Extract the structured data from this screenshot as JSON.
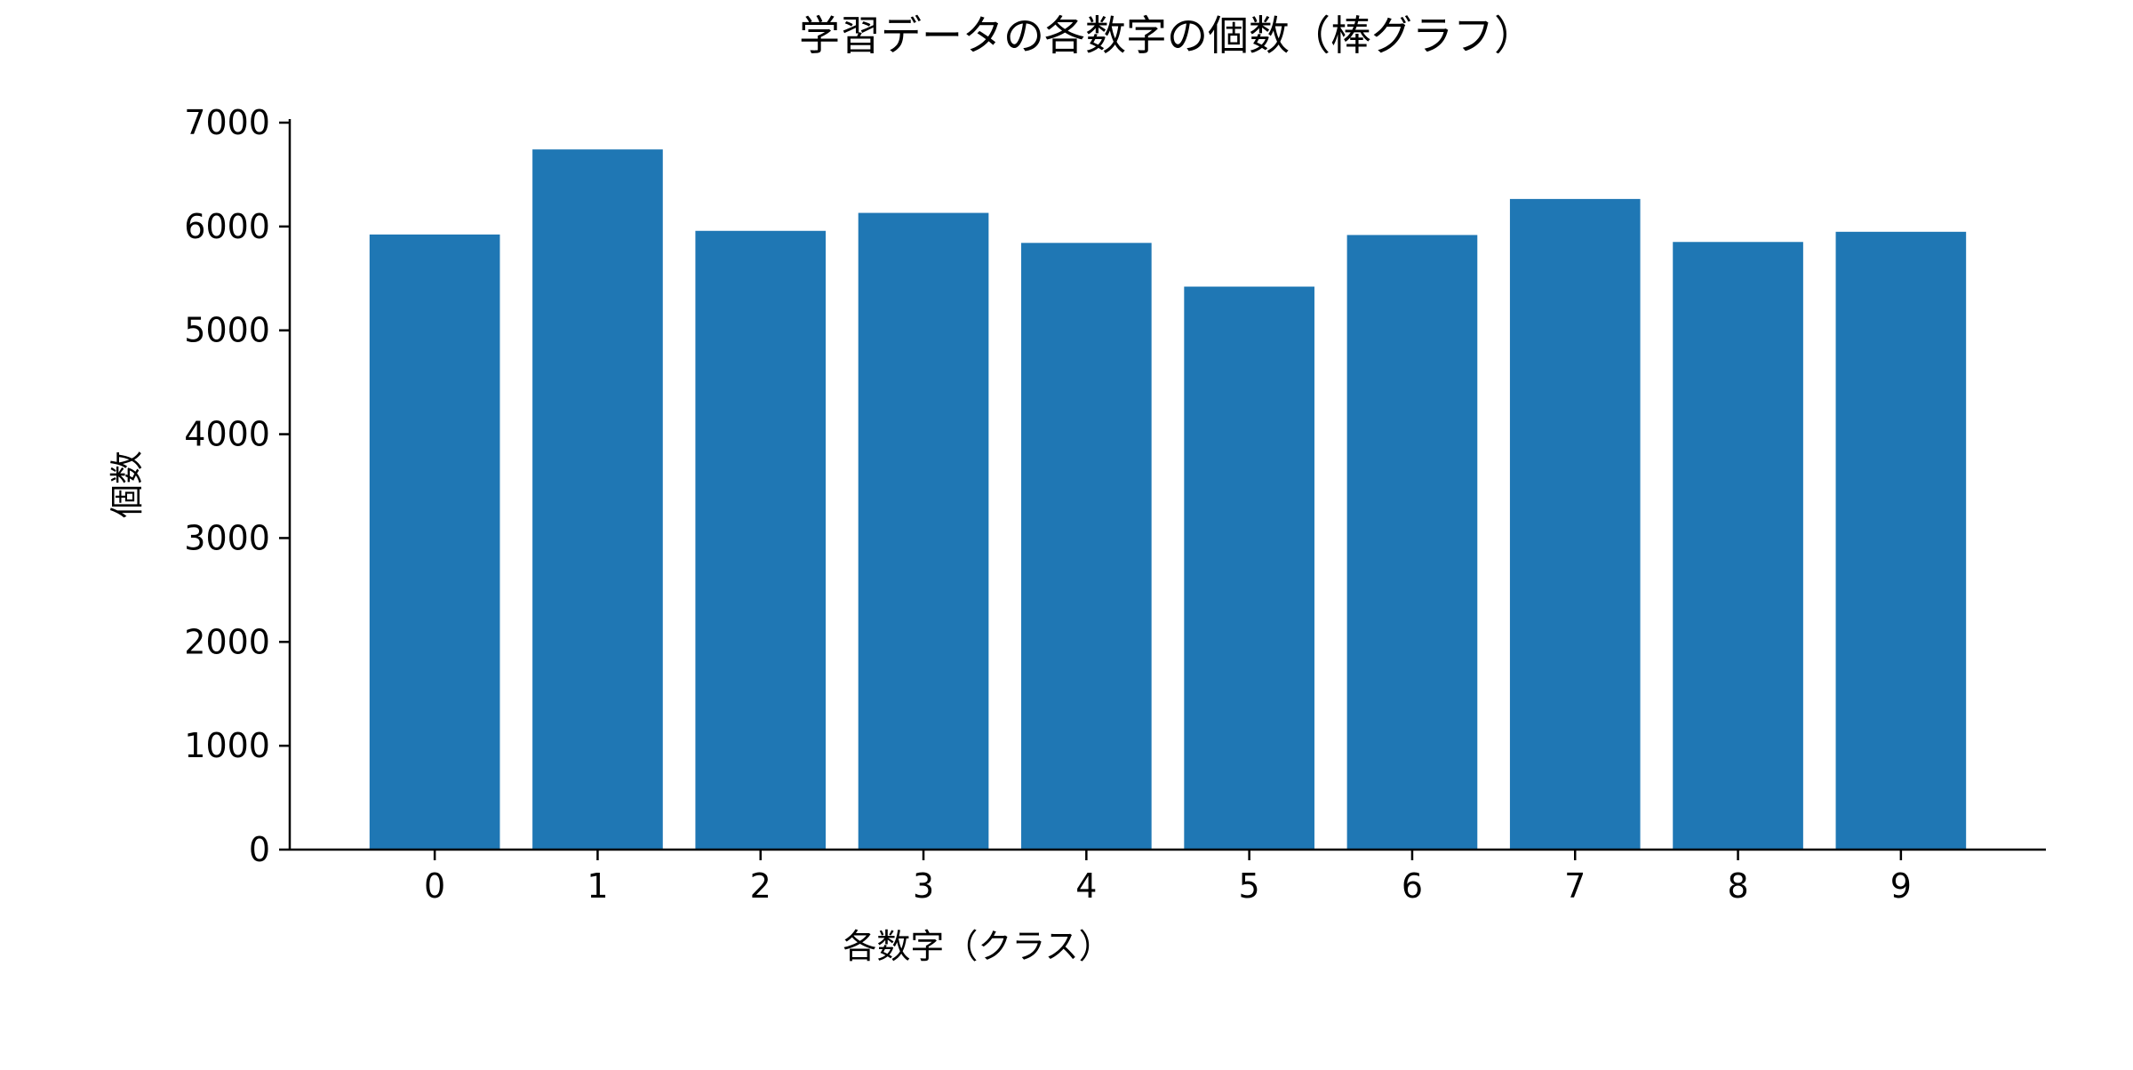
{
  "chart_data": {
    "type": "bar",
    "title": "学習データの各数字の個数（棒グラフ）",
    "xlabel": "各数字（クラス）",
    "ylabel": "個数",
    "categories": [
      "0",
      "1",
      "2",
      "3",
      "4",
      "5",
      "6",
      "7",
      "8",
      "9"
    ],
    "values": [
      5923,
      6742,
      5958,
      6131,
      5842,
      5421,
      5918,
      6265,
      5851,
      5949
    ],
    "ylim": [
      0,
      7000
    ],
    "yticks": [
      0,
      1000,
      2000,
      3000,
      4000,
      5000,
      6000,
      7000
    ],
    "grid": false,
    "legend": "none",
    "bar_color": "#1f77b4"
  }
}
